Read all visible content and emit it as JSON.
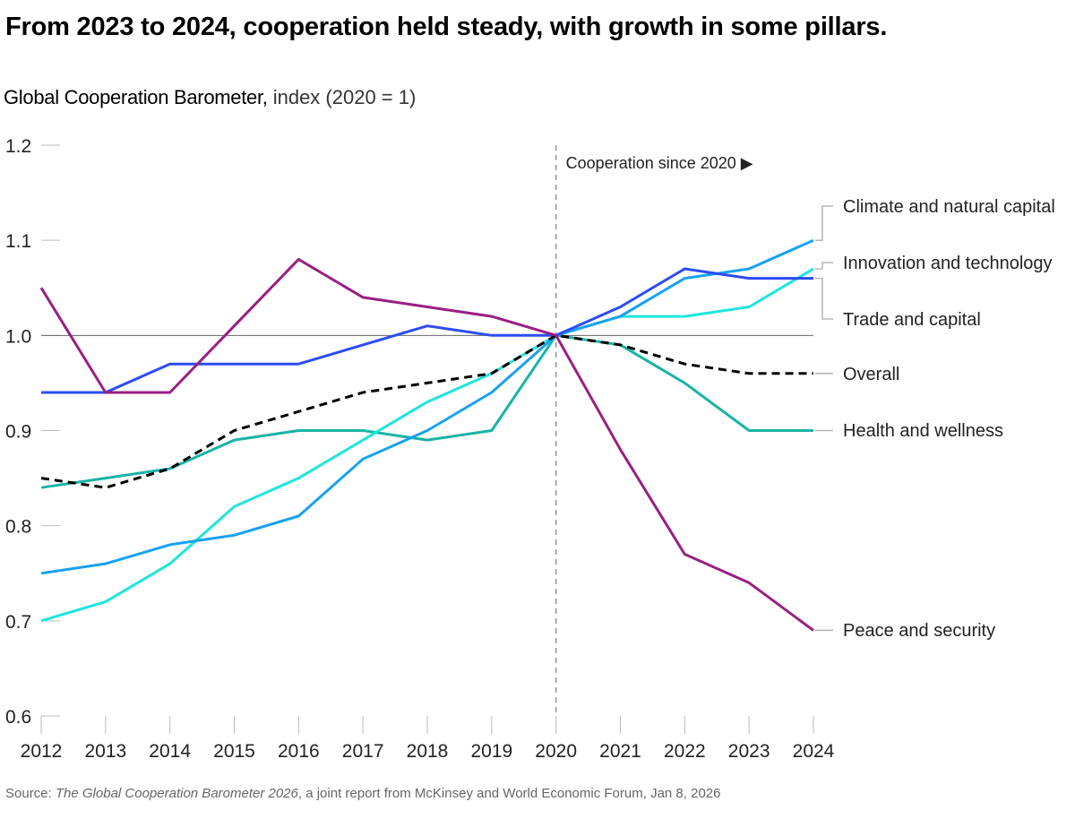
{
  "title": "From 2023 to 2024, cooperation held steady, with growth in some pillars.",
  "subtitle": {
    "bold": "Global Cooperation Barometer,",
    "unit": " index (2020 = 1)"
  },
  "source": {
    "prefix": "Source: ",
    "italic": "The Global Cooperation Barometer 2026",
    "suffix": ", a joint report from McKinsey and World Economic Forum, Jan 8, 2026"
  },
  "chart_data": {
    "type": "line",
    "title": "From 2023 to 2024, cooperation held steady, with growth in some pillars.",
    "ylabel": "Global Cooperation Barometer, index (2020 = 1)",
    "x": [
      2012,
      2013,
      2014,
      2015,
      2016,
      2017,
      2018,
      2019,
      2020,
      2021,
      2022,
      2023,
      2024
    ],
    "ylim": [
      0.6,
      1.2
    ],
    "yticks": [
      "0.6",
      "0.7",
      "0.8",
      "0.9",
      "1.0",
      "1.1",
      "1.2"
    ],
    "reference_line": 1.0,
    "annotation": {
      "x": 2020,
      "text": "Cooperation since 2020 ▶"
    },
    "series": [
      {
        "name": "Climate and natural capital",
        "color": "#17a2ef",
        "dashed": false,
        "values": [
          0.75,
          0.76,
          0.78,
          0.79,
          0.81,
          0.87,
          0.9,
          0.94,
          1.0,
          1.02,
          1.06,
          1.07,
          1.1
        ]
      },
      {
        "name": "Innovation and technology",
        "color": "#1ee6dc",
        "dashed": false,
        "values": [
          0.7,
          0.72,
          0.76,
          0.82,
          0.85,
          0.89,
          0.93,
          0.96,
          1.0,
          1.02,
          1.02,
          1.03,
          1.07
        ]
      },
      {
        "name": "Trade and capital",
        "color": "#2d4cf3",
        "dashed": false,
        "values": [
          0.94,
          0.94,
          0.97,
          0.97,
          0.97,
          0.99,
          1.01,
          1.0,
          1.0,
          1.03,
          1.07,
          1.06,
          1.06
        ]
      },
      {
        "name": "Overall",
        "color": "#000000",
        "dashed": true,
        "values": [
          0.85,
          0.84,
          0.86,
          0.9,
          0.92,
          0.94,
          0.95,
          0.96,
          1.0,
          0.99,
          0.97,
          0.96,
          0.96
        ]
      },
      {
        "name": "Health and wellness",
        "color": "#18b4a6",
        "dashed": false,
        "values": [
          0.84,
          0.85,
          0.86,
          0.89,
          0.9,
          0.9,
          0.89,
          0.9,
          1.0,
          0.99,
          0.95,
          0.9,
          0.9
        ]
      },
      {
        "name": "Peace and security",
        "color": "#9a1f82",
        "dashed": false,
        "values": [
          1.05,
          0.94,
          0.94,
          1.01,
          1.08,
          1.04,
          1.03,
          1.02,
          1.0,
          0.88,
          0.77,
          0.74,
          0.69
        ]
      }
    ],
    "legend": "right-end labels",
    "grid": false
  }
}
